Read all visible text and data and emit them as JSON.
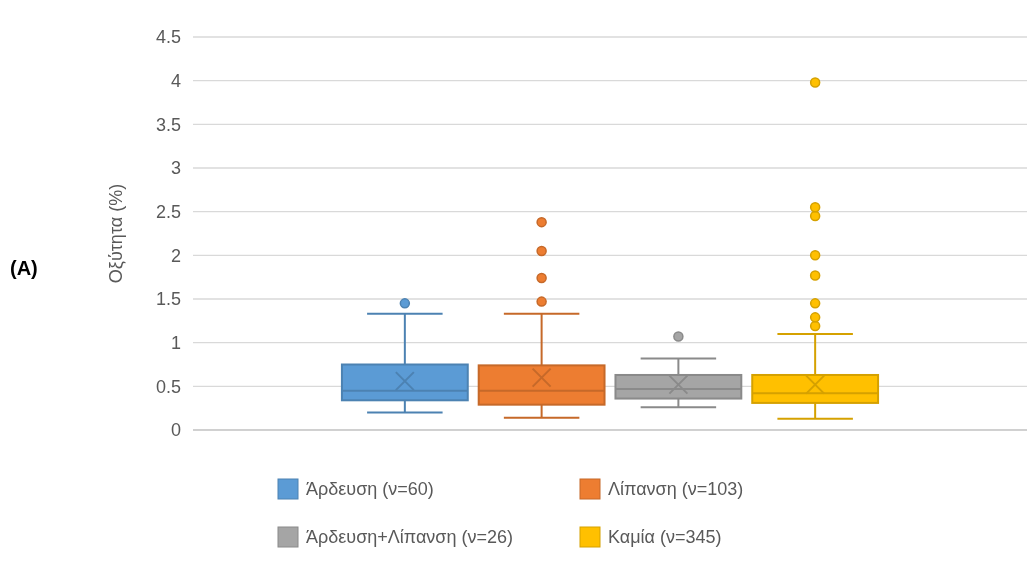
{
  "chart_data": {
    "type": "box",
    "ylabel": "Οξύτητα (%)",
    "categories": [
      null
    ],
    "ylim": [
      0,
      4.5
    ],
    "yticks": [
      0,
      0.5,
      1,
      1.5,
      2,
      2.5,
      3,
      3.5,
      4,
      4.5
    ],
    "grid": "y",
    "legend": "bottom",
    "annotations": [
      "(A)"
    ],
    "series": [
      {
        "name": "Άρδευση (ν=60)",
        "color": "#5b9bd5",
        "boxes": [
          {
            "low": 0.2,
            "q1": 0.34,
            "median": 0.45,
            "q3": 0.75,
            "high": 1.33,
            "mean": 0.56,
            "outliers": [
              1.45
            ]
          }
        ]
      },
      {
        "name": "Λίπανση (ν=103)",
        "color": "#ed7d31",
        "boxes": [
          {
            "low": 0.14,
            "q1": 0.29,
            "median": 0.45,
            "q3": 0.74,
            "high": 1.33,
            "mean": 0.6,
            "outliers": [
              1.47,
              1.74,
              2.05,
              2.38
            ]
          }
        ]
      },
      {
        "name": "Άρδευση+Λίπανση (ν=26)",
        "color": "#a5a5a5",
        "boxes": [
          {
            "low": 0.26,
            "q1": 0.36,
            "median": 0.47,
            "q3": 0.63,
            "high": 0.82,
            "mean": 0.52,
            "outliers": [
              1.07
            ]
          }
        ]
      },
      {
        "name": "Καμία (ν=345)",
        "color": "#ffc000",
        "boxes": [
          {
            "low": 0.13,
            "q1": 0.31,
            "median": 0.42,
            "q3": 0.63,
            "high": 1.1,
            "mean": 0.52,
            "outliers": [
              1.19,
              1.29,
              1.45,
              1.77,
              2.0,
              2.45,
              2.55,
              3.98
            ]
          }
        ]
      }
    ]
  }
}
